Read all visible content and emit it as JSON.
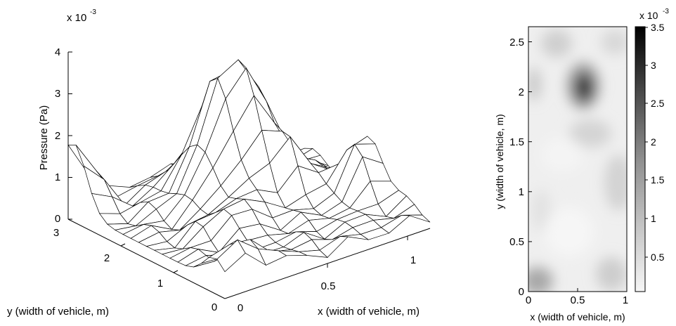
{
  "chart_data": [
    {
      "type": "surface",
      "zlabel": "Pressure (Pa)",
      "xlabel": "x (width of vehicle, m)",
      "ylabel": "y (width of vehicle, m)",
      "z_multiplier": {
        "base": "x 10",
        "exponent": "-3"
      },
      "x_ticks": [
        "0",
        "0.5",
        "1"
      ],
      "y_ticks": [
        "0",
        "1",
        "2",
        "3"
      ],
      "z_ticks": [
        "0",
        "1",
        "2",
        "3",
        "4"
      ],
      "xlim": [
        0,
        1
      ],
      "ylim": [
        0,
        3
      ],
      "zlim": [
        0,
        4
      ],
      "grid_shape": [
        11,
        21
      ],
      "surface_color": "#ffffff",
      "edge_color": "#000000"
    },
    {
      "type": "heatmap",
      "xlabel": "x (width of vehicle, m)",
      "ylabel": "y (width of vehicle, m)",
      "x_ticks": [
        "0",
        "0.5",
        "1"
      ],
      "y_ticks": [
        "0",
        "0.5",
        "1",
        "1.5",
        "2",
        "2.5"
      ],
      "xlim": [
        0,
        1
      ],
      "ylim": [
        0,
        2.65
      ],
      "colormap": "gray (white = low, black = high)",
      "colorbar": {
        "multiplier": {
          "base": "x 10",
          "exponent": "-3"
        },
        "ticks": [
          "0.5",
          "1",
          "1.5",
          "2",
          "2.5",
          "3",
          "3.5"
        ],
        "range": [
          0.05,
          3.5
        ]
      },
      "peak": {
        "x": 0.58,
        "y": 2.1,
        "value": 3.5
      }
    }
  ]
}
